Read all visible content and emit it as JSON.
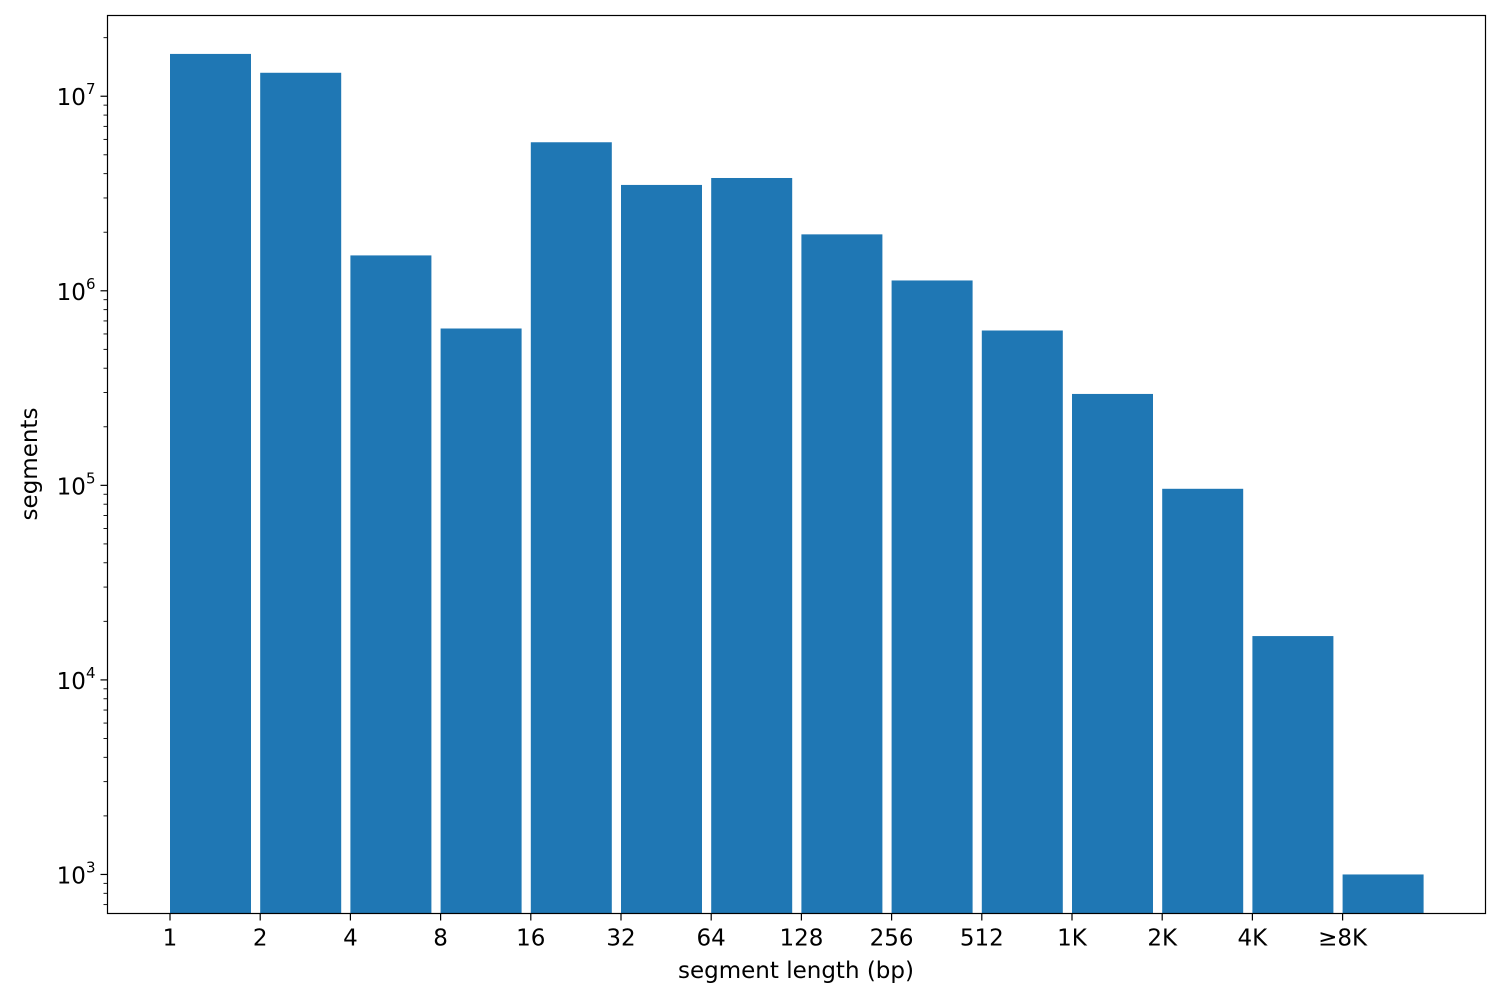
{
  "chart_data": {
    "type": "bar",
    "xlabel": "segment length (bp)",
    "ylabel": "segments",
    "yscale": "log",
    "ylim": [
      630,
      26000000
    ],
    "x_tick_labels": [
      "1",
      "2",
      "4",
      "8",
      "16",
      "32",
      "64",
      "128",
      "256",
      "512",
      "1K",
      "2K",
      "4K",
      "≥8K"
    ],
    "y_ticks": [
      {
        "value": 1000,
        "base": "10",
        "exp": "3"
      },
      {
        "value": 10000,
        "base": "10",
        "exp": "4"
      },
      {
        "value": 100000,
        "base": "10",
        "exp": "5"
      },
      {
        "value": 1000000,
        "base": "10",
        "exp": "6"
      },
      {
        "value": 10000000,
        "base": "10",
        "exp": "7"
      }
    ],
    "values": [
      16500000,
      13200000,
      1520000,
      640000,
      5800000,
      3500000,
      3800000,
      1950000,
      1130000,
      625000,
      295000,
      96000,
      16800,
      1000
    ],
    "bar_color": "#1f77b4",
    "grid": false,
    "legend": false
  }
}
